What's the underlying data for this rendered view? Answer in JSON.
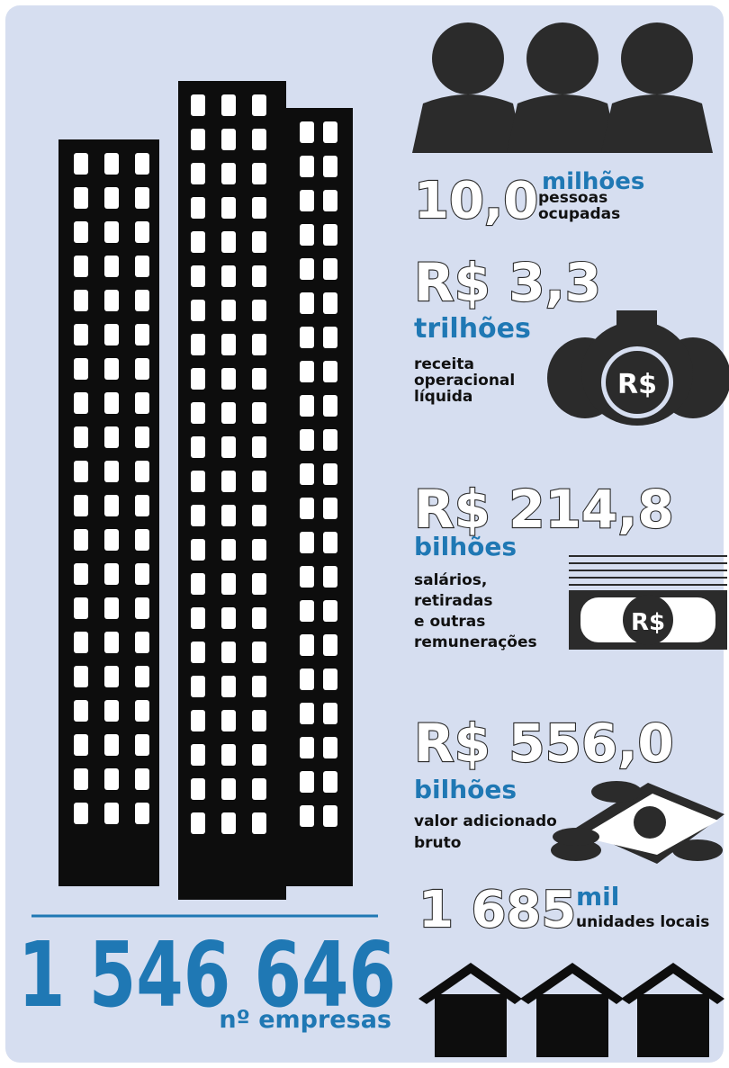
{
  "companies": {
    "value": "1 546 646",
    "label": "nº empresas"
  },
  "stats": [
    {
      "value": "10,0",
      "unit": "milhões",
      "label": [
        "pessoas",
        "ocupadas"
      ]
    },
    {
      "value": "R$ 3,3",
      "unit": "trilhões",
      "label": [
        "receita",
        "operacional",
        "líquida"
      ],
      "icon_text": "R$"
    },
    {
      "value": "R$ 214,8",
      "unit": "bilhões",
      "label": [
        "salários,",
        "retiradas",
        "e outras",
        "remunerações"
      ],
      "icon_text": "R$"
    },
    {
      "value": "R$ 556,0",
      "unit": "bilhões",
      "label": [
        "valor adicionado",
        "bruto"
      ]
    },
    {
      "value": "1 685",
      "unit": "mil",
      "label": [
        "unidades locais"
      ]
    }
  ]
}
